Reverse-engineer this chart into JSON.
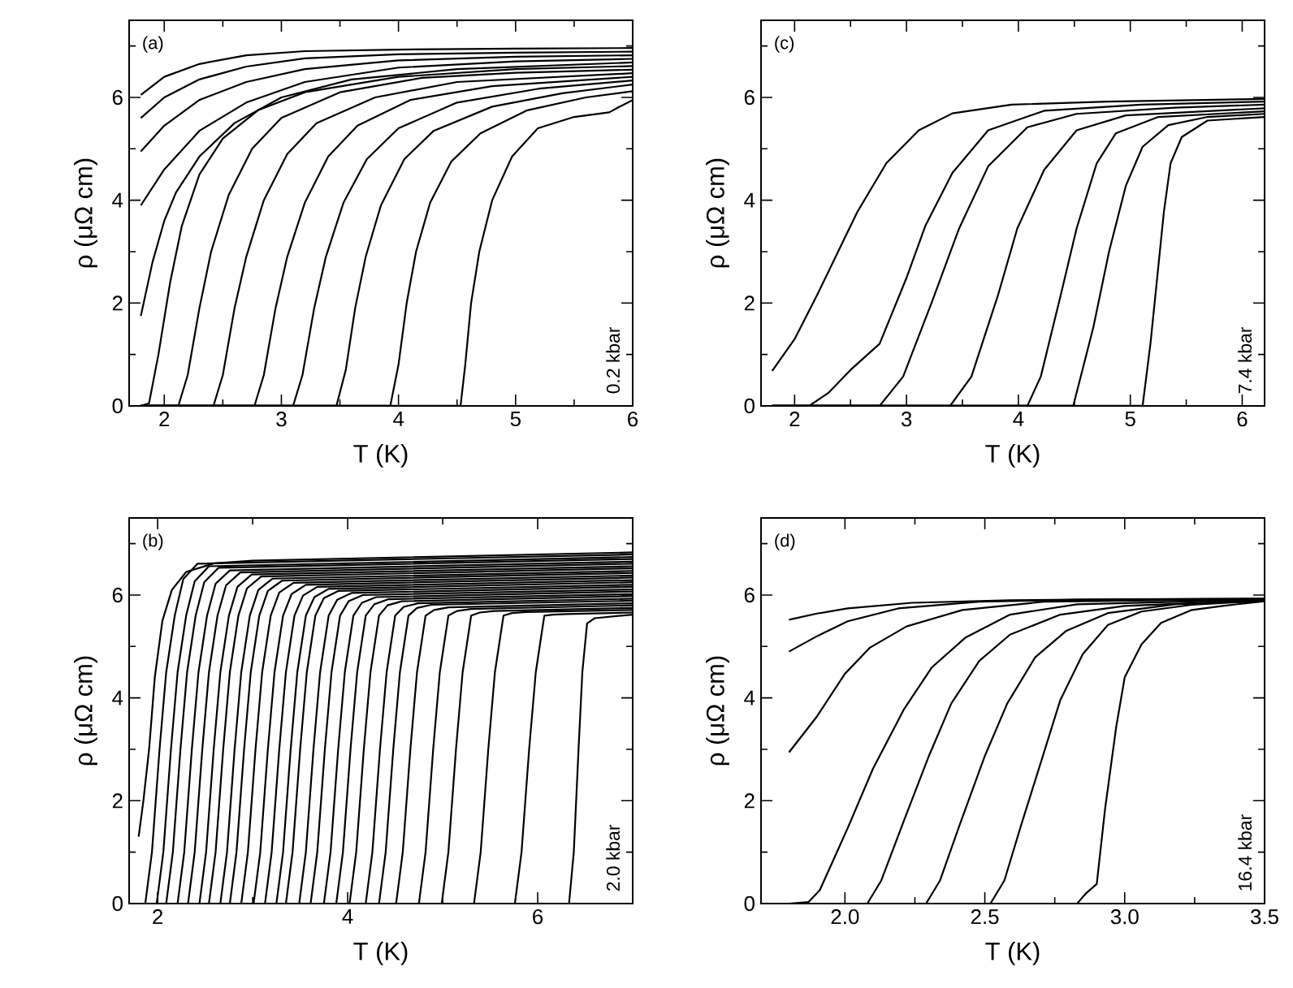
{
  "chart_data": [
    {
      "type": "line",
      "xlabel": "T (K)",
      "ylabel": "ρ (μΩ cm)",
      "annotations": [
        "(a)",
        "0.2 kbar"
      ],
      "xlim": [
        1.7,
        6
      ],
      "ylim": [
        0,
        7.5
      ],
      "xticks": [
        2,
        3,
        4,
        5,
        6,
        {
          "value": 2.5,
          "label": null
        },
        {
          "value": 3.5,
          "label": null
        },
        {
          "value": 4.5,
          "label": null
        },
        {
          "value": 5.5,
          "label": null
        }
      ],
      "yticks": [
        0,
        2,
        4,
        6,
        {
          "value": 1,
          "label": null
        },
        {
          "value": 3,
          "label": null
        },
        {
          "value": 5,
          "label": null
        },
        {
          "value": 7,
          "label": null
        }
      ],
      "series": [
        {
          "color": "#000000",
          "x": [
            1.8,
            2.0,
            2.3,
            2.7,
            3.2,
            4,
            5,
            6
          ],
          "values": [
            6.05,
            6.4,
            6.65,
            6.82,
            6.9,
            6.93,
            6.95,
            6.96
          ]
        },
        {
          "color": "#000000",
          "x": [
            1.8,
            2.0,
            2.3,
            2.7,
            3.2,
            4,
            5,
            6
          ],
          "values": [
            5.6,
            6.0,
            6.35,
            6.6,
            6.76,
            6.84,
            6.87,
            6.89
          ]
        },
        {
          "color": "#000000",
          "x": [
            1.8,
            2.0,
            2.3,
            2.7,
            3.2,
            4,
            5,
            6
          ],
          "values": [
            4.95,
            5.45,
            5.95,
            6.3,
            6.55,
            6.72,
            6.79,
            6.82
          ]
        },
        {
          "color": "#000000",
          "x": [
            1.8,
            2.0,
            2.3,
            2.7,
            3.2,
            4,
            5,
            6
          ],
          "values": [
            3.9,
            4.6,
            5.35,
            5.9,
            6.3,
            6.58,
            6.7,
            6.75
          ]
        },
        {
          "color": "#000000",
          "x": [
            1.8,
            1.9,
            2.0,
            2.1,
            2.3,
            2.6,
            3.0,
            3.6,
            4.5,
            6
          ],
          "values": [
            1.75,
            2.8,
            3.6,
            4.15,
            4.85,
            5.5,
            6.0,
            6.35,
            6.55,
            6.68
          ]
        },
        {
          "color": "#000000",
          "x": [
            1.8,
            1.87,
            1.95,
            2.05,
            2.15,
            2.3,
            2.5,
            2.8,
            3.2,
            4,
            5,
            6
          ],
          "values": [
            0,
            0.05,
            1.0,
            2.4,
            3.5,
            4.5,
            5.2,
            5.75,
            6.1,
            6.4,
            6.55,
            6.61
          ]
        },
        {
          "color": "#000000",
          "x": [
            1.8,
            2.12,
            2.2,
            2.3,
            2.4,
            2.55,
            2.75,
            3.0,
            3.5,
            4.2,
            5,
            6
          ],
          "values": [
            0,
            0,
            0.6,
            1.9,
            3.0,
            4.1,
            5.0,
            5.6,
            6.1,
            6.38,
            6.48,
            6.54
          ]
        },
        {
          "color": "#000000",
          "x": [
            1.8,
            2.42,
            2.5,
            2.6,
            2.7,
            2.85,
            3.05,
            3.3,
            3.8,
            4.5,
            6
          ],
          "values": [
            0,
            0,
            0.6,
            1.9,
            2.9,
            4.0,
            4.9,
            5.5,
            6.0,
            6.3,
            6.47
          ]
        },
        {
          "color": "#000000",
          "x": [
            1.8,
            2.77,
            2.85,
            2.95,
            3.05,
            3.2,
            3.4,
            3.65,
            4.1,
            4.8,
            6
          ],
          "values": [
            0,
            0,
            0.6,
            1.9,
            2.9,
            3.95,
            4.85,
            5.45,
            5.95,
            6.22,
            6.4
          ]
        },
        {
          "color": "#000000",
          "x": [
            1.8,
            3.1,
            3.18,
            3.28,
            3.38,
            3.53,
            3.73,
            4.0,
            4.5,
            5.2,
            6
          ],
          "values": [
            0,
            0,
            0.6,
            1.9,
            2.9,
            3.95,
            4.8,
            5.4,
            5.9,
            6.17,
            6.33
          ]
        },
        {
          "color": "#000000",
          "x": [
            1.8,
            3.47,
            3.55,
            3.63,
            3.72,
            3.85,
            4.05,
            4.3,
            4.8,
            5.4,
            6
          ],
          "values": [
            0,
            0,
            0.7,
            1.9,
            2.9,
            3.9,
            4.8,
            5.35,
            5.82,
            6.08,
            6.25
          ]
        },
        {
          "color": "#000000",
          "x": [
            1.8,
            3.93,
            4.0,
            4.07,
            4.15,
            4.27,
            4.45,
            4.7,
            5.1,
            5.6,
            6
          ],
          "values": [
            0,
            0,
            0.8,
            2.0,
            3.0,
            3.95,
            4.75,
            5.3,
            5.75,
            6.0,
            6.12
          ]
        },
        {
          "color": "#000000",
          "x": [
            1.8,
            4.53,
            4.57,
            4.62,
            4.69,
            4.8,
            4.97,
            5.19,
            5.5,
            5.8,
            5.88,
            6.0
          ],
          "values": [
            0,
            0,
            0.8,
            2.0,
            3.0,
            4.0,
            4.85,
            5.4,
            5.62,
            5.71,
            5.81,
            5.95
          ]
        }
      ]
    },
    {
      "type": "line",
      "xlabel": "T (K)",
      "ylabel": "ρ (μΩ cm)",
      "annotations": [
        "(c)",
        "7.4 kbar"
      ],
      "xlim": [
        1.7,
        6.2
      ],
      "ylim": [
        0,
        7.5
      ],
      "xticks": [
        2,
        3,
        4,
        5,
        6,
        {
          "value": 2.5,
          "label": null
        },
        {
          "value": 3.5,
          "label": null
        },
        {
          "value": 4.5,
          "label": null
        },
        {
          "value": 5.5,
          "label": null
        }
      ],
      "yticks": [
        0,
        2,
        4,
        6,
        {
          "value": 1,
          "label": null
        },
        {
          "value": 3,
          "label": null
        },
        {
          "value": 5,
          "label": null
        },
        {
          "value": 7,
          "label": null
        }
      ],
      "series": [
        {
          "color": "#000000",
          "x": [
            1.8,
            2.0,
            2.2,
            2.4,
            2.56,
            2.82,
            3.11,
            3.41,
            3.94,
            4.8,
            6.2
          ],
          "values": [
            0.68,
            1.3,
            2.15,
            3.05,
            3.77,
            4.72,
            5.36,
            5.69,
            5.86,
            5.92,
            5.97
          ]
        },
        {
          "color": "#000000",
          "x": [
            1.8,
            2.13,
            2.3,
            2.5,
            2.76,
            3.0,
            3.17,
            3.41,
            3.73,
            4.23,
            5.1,
            6.2
          ],
          "values": [
            0,
            0,
            0.25,
            0.7,
            1.21,
            2.49,
            3.51,
            4.53,
            5.36,
            5.74,
            5.86,
            5.92
          ]
        },
        {
          "color": "#000000",
          "x": [
            1.8,
            2.76,
            2.97,
            3.23,
            3.47,
            3.73,
            4.08,
            4.52,
            5.4,
            6.2
          ],
          "values": [
            0,
            0,
            0.57,
            2.04,
            3.45,
            4.66,
            5.42,
            5.68,
            5.8,
            5.86
          ]
        },
        {
          "color": "#000000",
          "x": [
            1.8,
            3.39,
            3.58,
            3.82,
            3.99,
            4.23,
            4.52,
            4.96,
            6.2
          ],
          "values": [
            0,
            0,
            0.57,
            2.17,
            3.45,
            4.59,
            5.36,
            5.65,
            5.79
          ]
        },
        {
          "color": "#000000",
          "x": [
            1.8,
            4.08,
            4.2,
            4.38,
            4.52,
            4.7,
            4.87,
            5.25,
            6.2
          ],
          "values": [
            0,
            0,
            0.57,
            2.17,
            3.45,
            4.72,
            5.3,
            5.62,
            5.73
          ]
        },
        {
          "color": "#000000",
          "x": [
            1.8,
            4.49,
            4.67,
            4.81,
            4.96,
            5.11,
            5.34,
            5.69,
            6.2
          ],
          "values": [
            0,
            0,
            1.53,
            3.0,
            4.28,
            5.04,
            5.46,
            5.62,
            5.68
          ]
        },
        {
          "color": "#000000",
          "x": [
            1.8,
            5.11,
            5.18,
            5.24,
            5.3,
            5.36,
            5.46,
            5.69,
            6.2
          ],
          "values": [
            0,
            0,
            1.21,
            2.49,
            3.77,
            4.72,
            5.23,
            5.55,
            5.62
          ]
        }
      ]
    },
    {
      "type": "line",
      "xlabel": "T (K)",
      "ylabel": "ρ (μΩ cm)",
      "annotations": [
        "(b)",
        "2.0 kbar"
      ],
      "xlim": [
        1.7,
        7
      ],
      "ylim": [
        0,
        7.5
      ],
      "xticks": [
        2,
        4,
        6,
        {
          "value": 3,
          "label": null
        },
        {
          "value": 5,
          "label": null
        }
      ],
      "yticks": [
        0,
        2,
        4,
        6,
        {
          "value": 1,
          "label": null
        },
        {
          "value": 3,
          "label": null
        },
        {
          "value": 5,
          "label": null
        },
        {
          "value": 7,
          "label": null
        }
      ],
      "series": [
        {
          "color": "#000000",
          "x": [
            1.8,
            1.85,
            1.91,
            1.97,
            2.05,
            2.15,
            2.3,
            2.6,
            3.0,
            7
          ],
          "values": [
            1.3,
            2.0,
            3.0,
            4.4,
            5.5,
            6.1,
            6.45,
            6.62,
            6.67,
            6.83
          ]
        },
        {
          "color": "#000000",
          "x": [
            1.8,
            1.87,
            1.94,
            2.02,
            2.09,
            2.18,
            2.27,
            2.42,
            7
          ],
          "values": [
            0,
            0,
            1.0,
            3.0,
            4.5,
            5.6,
            6.31,
            6.61,
            6.79
          ]
        },
        {
          "color": "#000000",
          "x": [
            1.8,
            1.99,
            2.06,
            2.14,
            2.21,
            2.3,
            2.39,
            2.54,
            7
          ],
          "values": [
            0,
            0,
            1.0,
            3.0,
            4.5,
            5.6,
            6.27,
            6.56,
            6.74
          ]
        },
        {
          "color": "#000000",
          "x": [
            1.8,
            2.09,
            2.16,
            2.24,
            2.31,
            2.4,
            2.49,
            2.64,
            7
          ],
          "values": [
            0,
            0,
            1.0,
            3.0,
            4.5,
            5.6,
            6.25,
            6.53,
            6.7
          ]
        },
        {
          "color": "#000000",
          "x": [
            1.8,
            2.21,
            2.28,
            2.36,
            2.43,
            2.52,
            2.61,
            2.76,
            7
          ],
          "values": [
            0,
            0,
            1.0,
            3.0,
            4.5,
            5.6,
            6.22,
            6.48,
            6.65
          ]
        },
        {
          "color": "#000000",
          "x": [
            1.8,
            2.32,
            2.39,
            2.47,
            2.54,
            2.63,
            2.72,
            2.87,
            7
          ],
          "values": [
            0,
            0,
            1.0,
            3.0,
            4.5,
            5.6,
            6.19,
            6.44,
            6.61
          ]
        },
        {
          "color": "#000000",
          "x": [
            1.8,
            2.44,
            2.51,
            2.59,
            2.66,
            2.75,
            2.84,
            2.99,
            7
          ],
          "values": [
            0,
            0,
            1.0,
            3.0,
            4.5,
            5.6,
            6.16,
            6.4,
            6.56
          ]
        },
        {
          "color": "#000000",
          "x": [
            1.8,
            2.54,
            2.61,
            2.69,
            2.76,
            2.85,
            2.94,
            3.09,
            7
          ],
          "values": [
            0,
            0,
            1.0,
            3.0,
            4.5,
            5.6,
            6.13,
            6.36,
            6.52
          ]
        },
        {
          "color": "#000000",
          "x": [
            1.8,
            2.66,
            2.73,
            2.81,
            2.88,
            2.97,
            3.06,
            3.21,
            7
          ],
          "values": [
            0,
            0,
            1.0,
            3.0,
            4.5,
            5.6,
            6.1,
            6.32,
            6.47
          ]
        },
        {
          "color": "#000000",
          "x": [
            1.8,
            2.76,
            2.83,
            2.91,
            2.98,
            3.07,
            3.16,
            3.31,
            7
          ],
          "values": [
            0,
            0,
            1.0,
            3.0,
            4.5,
            5.6,
            6.08,
            6.28,
            6.43
          ]
        },
        {
          "color": "#000000",
          "x": [
            1.8,
            2.88,
            2.95,
            3.03,
            3.1,
            3.19,
            3.28,
            3.43,
            7
          ],
          "values": [
            0,
            0,
            1.0,
            3.0,
            4.5,
            5.6,
            6.05,
            6.24,
            6.38
          ]
        },
        {
          "color": "#000000",
          "x": [
            1.8,
            3.01,
            3.08,
            3.16,
            3.23,
            3.32,
            3.41,
            3.56,
            7
          ],
          "values": [
            0,
            0,
            1.0,
            3.0,
            4.5,
            5.6,
            6.02,
            6.2,
            6.34
          ]
        },
        {
          "color": "#000000",
          "x": [
            1.8,
            3.13,
            3.2,
            3.28,
            3.35,
            3.44,
            3.53,
            3.68,
            7
          ],
          "values": [
            0,
            0,
            1.0,
            3.0,
            4.5,
            5.6,
            5.99,
            6.16,
            6.29
          ]
        },
        {
          "color": "#000000",
          "x": [
            1.8,
            3.25,
            3.32,
            3.4,
            3.47,
            3.56,
            3.65,
            3.8,
            7
          ],
          "values": [
            0,
            0,
            1.0,
            3.0,
            4.5,
            5.6,
            5.96,
            6.12,
            6.25
          ]
        },
        {
          "color": "#000000",
          "x": [
            1.8,
            3.35,
            3.42,
            3.5,
            3.57,
            3.66,
            3.75,
            3.9,
            7
          ],
          "values": [
            0,
            0,
            1.0,
            3.0,
            4.5,
            5.6,
            5.94,
            6.08,
            6.2
          ]
        },
        {
          "color": "#000000",
          "x": [
            1.8,
            3.49,
            3.56,
            3.64,
            3.71,
            3.8,
            3.89,
            4.04,
            7
          ],
          "values": [
            0,
            0,
            1.0,
            3.0,
            4.5,
            5.6,
            5.91,
            6.04,
            6.16
          ]
        },
        {
          "color": "#000000",
          "x": [
            1.8,
            3.61,
            3.68,
            3.76,
            3.83,
            3.92,
            4.01,
            4.16,
            7
          ],
          "values": [
            0,
            0,
            1.0,
            3.0,
            4.5,
            5.6,
            5.88,
            6.0,
            6.11
          ]
        },
        {
          "color": "#000000",
          "x": [
            1.8,
            3.75,
            3.82,
            3.9,
            3.97,
            4.06,
            4.15,
            4.3,
            7
          ],
          "values": [
            0,
            0,
            1.0,
            3.0,
            4.5,
            5.6,
            5.85,
            5.96,
            6.07
          ]
        },
        {
          "color": "#000000",
          "x": [
            1.8,
            3.88,
            3.95,
            4.03,
            4.1,
            4.19,
            4.28,
            4.43,
            7
          ],
          "values": [
            0,
            0,
            1.0,
            3.0,
            4.5,
            5.6,
            5.82,
            5.92,
            6.02
          ]
        },
        {
          "color": "#000000",
          "x": [
            1.8,
            4.02,
            4.09,
            4.17,
            4.24,
            4.33,
            4.42,
            4.57,
            7
          ],
          "values": [
            0,
            0,
            1.0,
            3.0,
            4.5,
            5.6,
            5.8,
            5.88,
            5.98
          ]
        },
        {
          "color": "#000000",
          "x": [
            1.8,
            4.19,
            4.26,
            4.34,
            4.41,
            4.5,
            4.59,
            4.74,
            7
          ],
          "values": [
            0,
            0,
            1.0,
            3.0,
            4.5,
            5.6,
            5.77,
            5.84,
            5.93
          ]
        },
        {
          "color": "#000000",
          "x": [
            1.8,
            4.33,
            4.4,
            4.48,
            4.55,
            4.64,
            4.73,
            4.88,
            7
          ],
          "values": [
            0,
            0,
            1.0,
            3.0,
            4.5,
            5.6,
            5.75,
            5.81,
            5.89
          ]
        },
        {
          "color": "#000000",
          "x": [
            1.8,
            4.51,
            4.58,
            4.66,
            4.73,
            4.82,
            4.91,
            5.06,
            7
          ],
          "values": [
            0,
            0,
            1.0,
            3.0,
            4.5,
            5.6,
            5.71,
            5.76,
            5.84
          ]
        },
        {
          "color": "#000000",
          "x": [
            1.8,
            4.75,
            4.82,
            4.9,
            4.97,
            5.06,
            5.15,
            5.3,
            7
          ],
          "values": [
            0,
            0,
            1.0,
            3.0,
            4.5,
            5.6,
            5.69,
            5.73,
            5.8
          ]
        },
        {
          "color": "#000000",
          "x": [
            1.8,
            4.99,
            5.06,
            5.14,
            5.21,
            5.3,
            5.39,
            5.54,
            7
          ],
          "values": [
            0,
            0,
            1.0,
            3.0,
            4.5,
            5.6,
            5.66,
            5.69,
            5.75
          ]
        },
        {
          "color": "#000000",
          "x": [
            1.8,
            5.33,
            5.4,
            5.48,
            5.55,
            5.64,
            5.73,
            5.88,
            7
          ],
          "values": [
            0,
            0,
            1.0,
            3.0,
            4.5,
            5.6,
            5.65,
            5.67,
            5.71
          ]
        },
        {
          "color": "#000000",
          "x": [
            1.8,
            5.76,
            5.83,
            5.91,
            5.98,
            6.07,
            6.16,
            6.31,
            7
          ],
          "values": [
            0,
            0,
            1.0,
            3.0,
            4.5,
            5.6,
            5.62,
            5.63,
            5.66
          ]
        },
        {
          "color": "#000000",
          "x": [
            1.8,
            6.33,
            6.38,
            6.43,
            6.47,
            6.52,
            6.6,
            7
          ],
          "values": [
            0,
            0,
            1.0,
            3.0,
            4.5,
            5.45,
            5.55,
            5.62
          ]
        }
      ]
    },
    {
      "type": "line",
      "xlabel": "T (K)",
      "ylabel": "ρ (μΩ cm)",
      "annotations": [
        "(d)",
        "16.4 kbar"
      ],
      "xlim": [
        1.7,
        3.5
      ],
      "ylim": [
        0,
        7.5
      ],
      "xticks": [
        {
          "value": 2,
          "label": "2.0"
        },
        2.5,
        {
          "value": 3,
          "label": "3.0"
        },
        3.5,
        {
          "value": 2.25,
          "label": null
        },
        {
          "value": 2.75,
          "label": null
        },
        {
          "value": 3.25,
          "label": null
        }
      ],
      "yticks": [
        0,
        2,
        4,
        6,
        {
          "value": 1,
          "label": null
        },
        {
          "value": 3,
          "label": null
        },
        {
          "value": 5,
          "label": null
        },
        {
          "value": 7,
          "label": null
        }
      ],
      "series": [
        {
          "color": "#000000",
          "x": [
            1.8,
            1.9,
            2.01,
            2.24,
            2.59,
            3.0,
            3.5
          ],
          "values": [
            5.52,
            5.64,
            5.74,
            5.85,
            5.9,
            5.92,
            5.93
          ]
        },
        {
          "color": "#000000",
          "x": [
            1.8,
            1.9,
            2.01,
            2.19,
            2.48,
            2.83,
            3.5
          ],
          "values": [
            4.9,
            5.2,
            5.49,
            5.74,
            5.87,
            5.91,
            5.93
          ]
        },
        {
          "color": "#000000",
          "x": [
            1.8,
            1.9,
            2.0,
            2.09,
            2.22,
            2.42,
            2.71,
            3.5
          ],
          "values": [
            2.94,
            3.64,
            4.47,
            4.98,
            5.39,
            5.71,
            5.87,
            5.92
          ]
        },
        {
          "color": "#000000",
          "x": [
            1.8,
            1.87,
            1.91,
            2.01,
            2.1,
            2.21,
            2.31,
            2.43,
            2.59,
            2.83,
            3.5
          ],
          "values": [
            0,
            0.03,
            0.26,
            1.47,
            2.62,
            3.77,
            4.59,
            5.17,
            5.62,
            5.82,
            5.91
          ]
        },
        {
          "color": "#000000",
          "x": [
            1.8,
            2.08,
            2.13,
            2.21,
            2.3,
            2.38,
            2.48,
            2.59,
            2.77,
            3.0,
            3.5
          ],
          "values": [
            0,
            0,
            0.45,
            1.6,
            2.87,
            3.89,
            4.72,
            5.23,
            5.62,
            5.79,
            5.9
          ]
        },
        {
          "color": "#000000",
          "x": [
            1.8,
            2.29,
            2.34,
            2.41,
            2.5,
            2.58,
            2.68,
            2.79,
            2.94,
            3.18,
            3.5
          ],
          "values": [
            0,
            0,
            0.45,
            1.53,
            2.87,
            3.89,
            4.79,
            5.3,
            5.65,
            5.82,
            5.89
          ]
        },
        {
          "color": "#000000",
          "x": [
            1.8,
            2.52,
            2.57,
            2.63,
            2.7,
            2.77,
            2.85,
            2.94,
            3.06,
            3.24,
            3.5
          ],
          "values": [
            0,
            0,
            0.45,
            1.53,
            2.74,
            3.96,
            4.85,
            5.42,
            5.68,
            5.81,
            5.89
          ]
        },
        {
          "color": "#000000",
          "x": [
            1.8,
            2.83,
            2.86,
            2.9,
            2.93,
            2.97,
            3.0,
            3.06,
            3.13,
            3.24,
            3.35,
            3.5
          ],
          "values": [
            0,
            0,
            0.19,
            0.38,
            1.85,
            3.45,
            4.4,
            5.04,
            5.46,
            5.71,
            5.79,
            5.88
          ]
        }
      ]
    }
  ]
}
